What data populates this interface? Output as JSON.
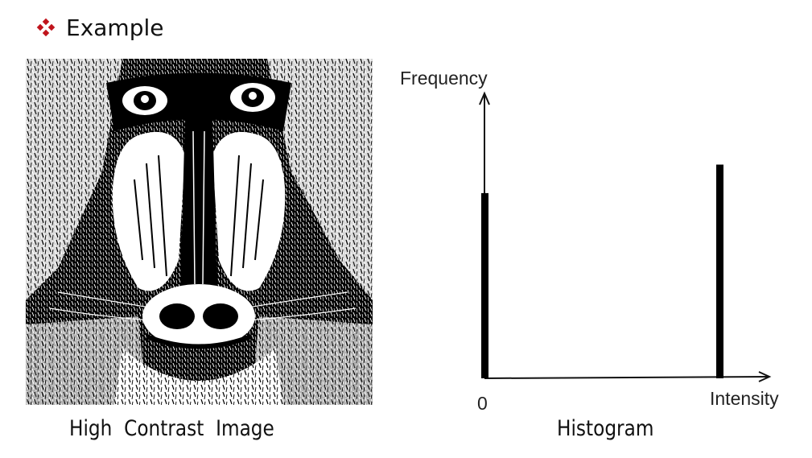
{
  "slide": {
    "heading": "Example",
    "bullet_icon": "diamond-bullet-icon",
    "bullet_color": "#c0141c"
  },
  "image_panel": {
    "caption": "High  Contrast  Image"
  },
  "histogram": {
    "caption": "Histogram",
    "y_axis_label": "Frequency",
    "x_axis_label": "Intensity",
    "x_origin_label": "0",
    "bar_color": "#000000"
  },
  "chart_data": {
    "type": "bar",
    "title": "Histogram",
    "xlabel": "Intensity",
    "ylabel": "Frequency",
    "x_tick_labels": [
      "0"
    ],
    "bars": [
      {
        "intensity": "0",
        "relative_height": 0.65
      },
      {
        "intensity": "max",
        "relative_height": 0.75
      }
    ],
    "grid": false,
    "legend": "none"
  }
}
